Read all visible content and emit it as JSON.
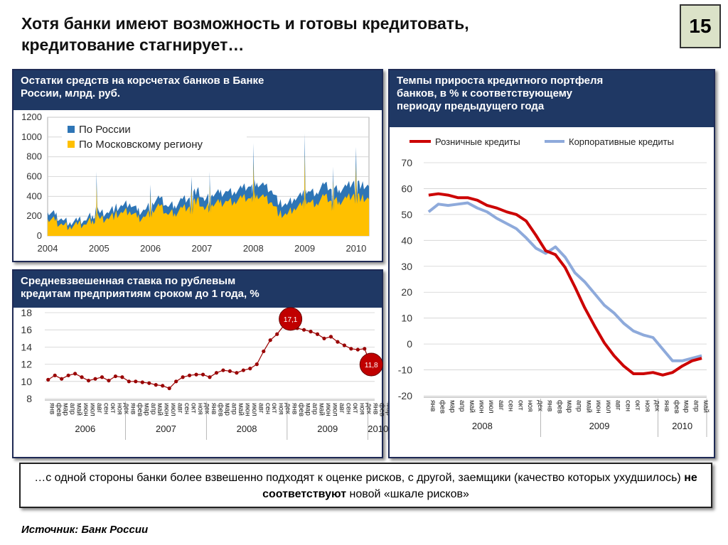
{
  "title": "Хотя банки имеют возможность и готовы кредитовать,\nкредитование стагнирует…",
  "slide_number": "15",
  "colors": {
    "header": "#1f3864",
    "blue": "#2e75b6",
    "yellow": "#ffc000",
    "red": "#cc0000",
    "lightblue": "#8eaadb",
    "dark_red": "#990000"
  },
  "panel1": {
    "header": "Остатки средств на корсчетах банков в Банке\nРоссии, млрд. руб."
  },
  "panel2": {
    "header": "Средневзвешенная ставка по рублевым\nкредитам предприятиям сроком до 1 года, %"
  },
  "panel3": {
    "header": "Темпы прироста кредитного портфеля\nбанков, в % к соответствующему\nпериоду предыдущего года"
  },
  "bottom": {
    "pre": "…с одной стороны банки более взвешенно подходят к оценке рисков, с другой, заемщики (качество которых ухудшилось) ",
    "bold": "не соответствуют",
    "post": " новой «шкале рисков»"
  },
  "source": "Источник: Банк России",
  "chart_data": [
    {
      "type": "area",
      "x_labels": [
        "2004",
        "2005",
        "2006",
        "2007",
        "2008",
        "2009",
        "2010"
      ],
      "ylim": [
        0,
        1200
      ],
      "yticks": [
        "0",
        "200",
        "400",
        "600",
        "800",
        "1000",
        "1200"
      ],
      "grid": true,
      "legend_position": "top-left",
      "series": [
        {
          "name": "По России",
          "color": "#2e75b6",
          "values": [
            240,
            210,
            160,
            140,
            150,
            155,
            210,
            230,
            240,
            280,
            300,
            330,
            250,
            260,
            340,
            380,
            300,
            310,
            370,
            390,
            470,
            350,
            420,
            430,
            450,
            450,
            480,
            500,
            540,
            510,
            460,
            330,
            310,
            380,
            400,
            450,
            440,
            520,
            470,
            470,
            500,
            560,
            510,
            500
          ]
        },
        {
          "name": "По Московскому региону",
          "color": "#ffc000",
          "values": [
            170,
            150,
            110,
            100,
            110,
            115,
            160,
            170,
            180,
            210,
            230,
            250,
            180,
            190,
            260,
            300,
            220,
            230,
            280,
            300,
            370,
            260,
            320,
            330,
            350,
            350,
            380,
            380,
            420,
            390,
            340,
            220,
            210,
            280,
            300,
            340,
            330,
            400,
            350,
            350,
            380,
            430,
            380,
            370
          ]
        }
      ],
      "spikes": [
        {
          "x": 2004.95,
          "y": 650
        },
        {
          "x": 2006.0,
          "y": 520
        },
        {
          "x": 2006.8,
          "y": 600
        },
        {
          "x": 2007.15,
          "y": 650
        },
        {
          "x": 2008.0,
          "y": 940
        },
        {
          "x": 2009.0,
          "y": 1040
        },
        {
          "x": 2009.55,
          "y": 700
        },
        {
          "x": 2010.0,
          "y": 900
        }
      ]
    },
    {
      "type": "line",
      "ylim": [
        8,
        18
      ],
      "yticks": [
        "8",
        "10",
        "12",
        "14",
        "16",
        "18"
      ],
      "grid": true,
      "months": [
        "янв",
        "фев",
        "мар",
        "апр",
        "май",
        "июн",
        "июл",
        "авг",
        "сен",
        "окт",
        "ноя",
        "дек"
      ],
      "years": [
        {
          "label": "2006",
          "months": 12
        },
        {
          "label": "2007",
          "months": 12
        },
        {
          "label": "2008",
          "months": 12
        },
        {
          "label": "2009",
          "months": 12
        },
        {
          "label": "2010",
          "months": 3
        }
      ],
      "series": [
        {
          "values": [
            10.2,
            10.7,
            10.3,
            10.7,
            10.9,
            10.5,
            10.1,
            10.3,
            10.5,
            10.1,
            10.6,
            10.5,
            10.0,
            10.0,
            9.9,
            9.8,
            9.6,
            9.5,
            9.2,
            10.0,
            10.5,
            10.7,
            10.8,
            10.8,
            10.5,
            11.0,
            11.3,
            11.2,
            11.0,
            11.3,
            11.5,
            12.0,
            13.5,
            14.8,
            15.5,
            16.5,
            17.1,
            16.2,
            16.0,
            15.8,
            15.5,
            15.0,
            15.2,
            14.6,
            14.2,
            13.8,
            13.7,
            13.8,
            11.8
          ]
        }
      ],
      "callouts": [
        {
          "index": 36,
          "label": "17,1"
        },
        {
          "index": 48,
          "label": "11,8"
        }
      ]
    },
    {
      "type": "line",
      "ylim": [
        -20,
        70
      ],
      "yticks": [
        "-20",
        "-10",
        "0",
        "10",
        "20",
        "30",
        "40",
        "50",
        "60",
        "70"
      ],
      "grid": true,
      "legend_position": "top",
      "months": [
        "янв",
        "фев",
        "мар",
        "апр",
        "май",
        "июн",
        "июл",
        "авг",
        "сен",
        "окт",
        "ноя",
        "дек"
      ],
      "years": [
        {
          "label": "2008",
          "months": 12
        },
        {
          "label": "2009",
          "months": 12
        },
        {
          "label": "2010",
          "months": 5
        }
      ],
      "series": [
        {
          "name": "Розничные кредиты",
          "color": "#cc0000",
          "values": [
            57.5,
            58.0,
            57.5,
            56.5,
            56.5,
            55.5,
            53.5,
            52.5,
            51.0,
            50.0,
            47.5,
            42.0,
            36.0,
            34.5,
            29.5,
            22.0,
            14.0,
            7.0,
            0.5,
            -4.5,
            -8.5,
            -11.5,
            -11.5,
            -11.0,
            -12.0,
            -11.0,
            -8.5,
            -6.5,
            -5.5
          ]
        },
        {
          "name": "Корпоративные кредиты",
          "color": "#8eaadb",
          "values": [
            51.0,
            54.0,
            53.5,
            54.0,
            54.5,
            52.5,
            51.0,
            48.5,
            46.5,
            44.5,
            41.0,
            37.0,
            35.0,
            37.5,
            33.5,
            27.5,
            24.0,
            19.5,
            15.0,
            12.0,
            8.0,
            5.0,
            3.5,
            2.5,
            -2.0,
            -6.5,
            -6.5,
            -5.5,
            -4.5
          ]
        }
      ]
    }
  ]
}
